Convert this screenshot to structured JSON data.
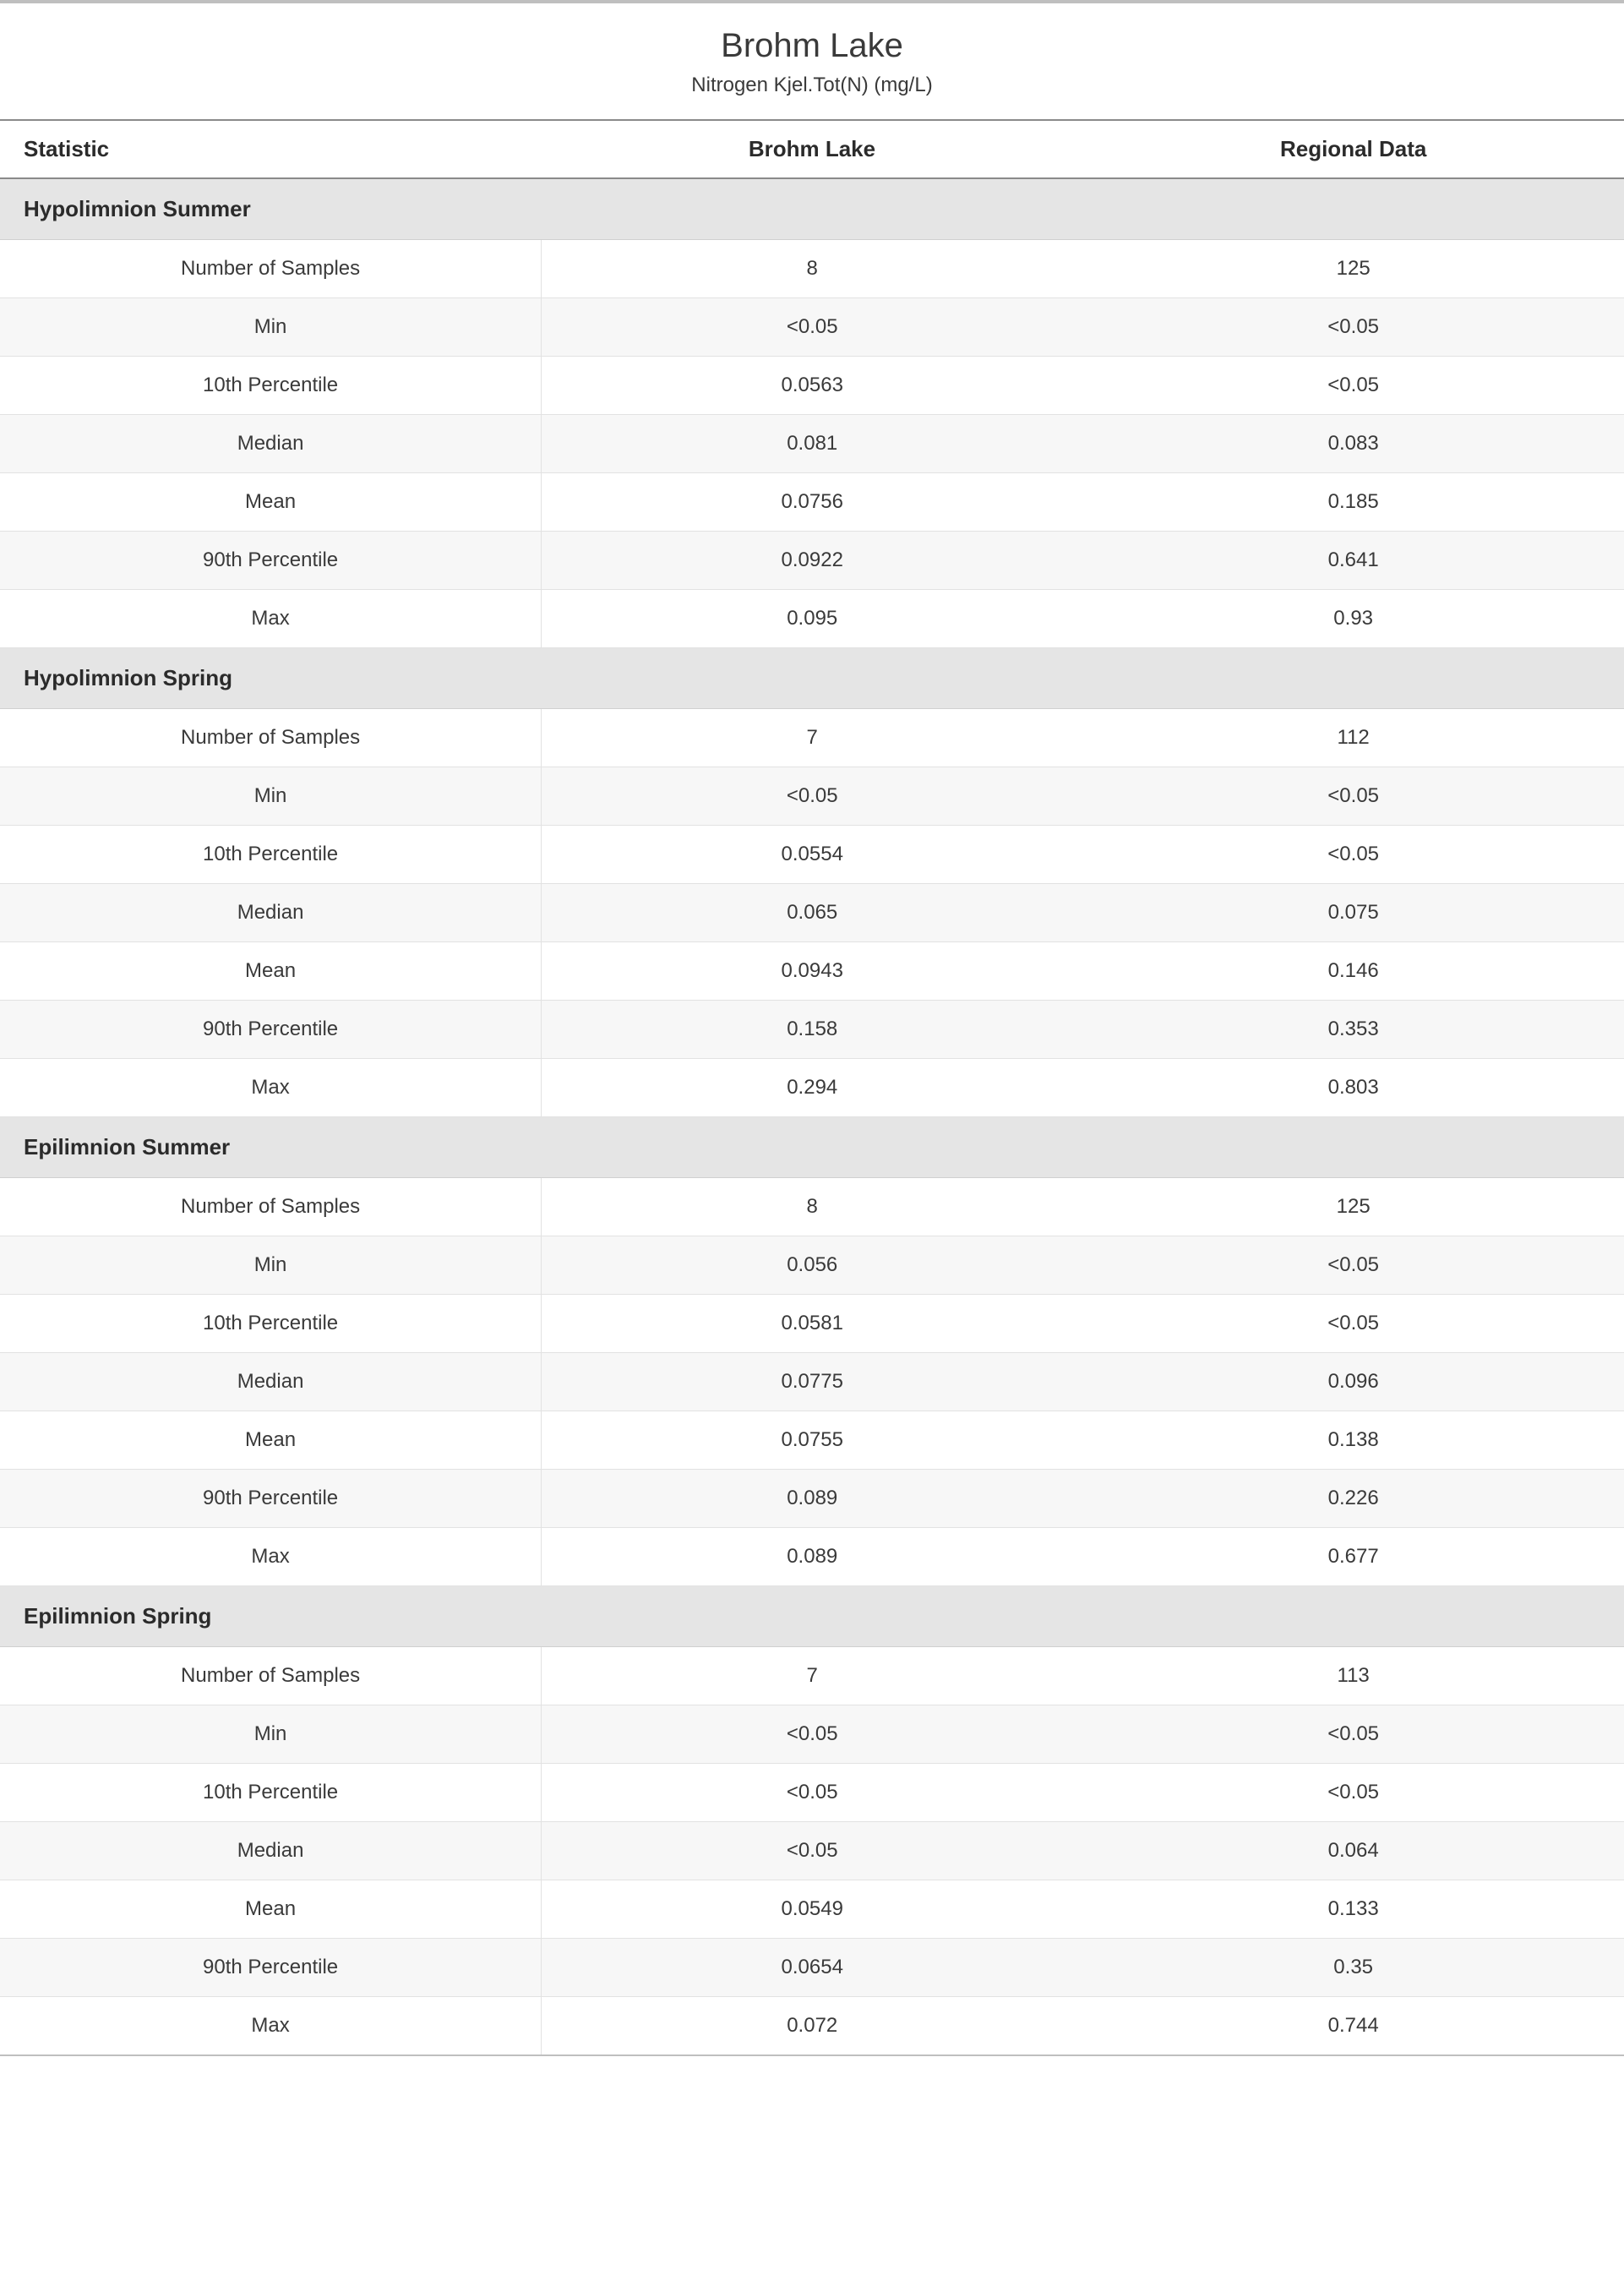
{
  "header": {
    "title": "Brohm Lake",
    "subtitle": "Nitrogen Kjel.Tot(N) (mg/L)"
  },
  "table": {
    "columns": [
      "Statistic",
      "Brohm Lake",
      "Regional Data"
    ],
    "sections": [
      {
        "name": "Hypolimnion Summer",
        "rows": [
          {
            "stat": "Number of Samples",
            "lake": "8",
            "regional": "125"
          },
          {
            "stat": "Min",
            "lake": "<0.05",
            "regional": "<0.05"
          },
          {
            "stat": "10th Percentile",
            "lake": "0.0563",
            "regional": "<0.05"
          },
          {
            "stat": "Median",
            "lake": "0.081",
            "regional": "0.083"
          },
          {
            "stat": "Mean",
            "lake": "0.0756",
            "regional": "0.185"
          },
          {
            "stat": "90th Percentile",
            "lake": "0.0922",
            "regional": "0.641"
          },
          {
            "stat": "Max",
            "lake": "0.095",
            "regional": "0.93"
          }
        ]
      },
      {
        "name": "Hypolimnion Spring",
        "rows": [
          {
            "stat": "Number of Samples",
            "lake": "7",
            "regional": "112"
          },
          {
            "stat": "Min",
            "lake": "<0.05",
            "regional": "<0.05"
          },
          {
            "stat": "10th Percentile",
            "lake": "0.0554",
            "regional": "<0.05"
          },
          {
            "stat": "Median",
            "lake": "0.065",
            "regional": "0.075"
          },
          {
            "stat": "Mean",
            "lake": "0.0943",
            "regional": "0.146"
          },
          {
            "stat": "90th Percentile",
            "lake": "0.158",
            "regional": "0.353"
          },
          {
            "stat": "Max",
            "lake": "0.294",
            "regional": "0.803"
          }
        ]
      },
      {
        "name": "Epilimnion Summer",
        "rows": [
          {
            "stat": "Number of Samples",
            "lake": "8",
            "regional": "125"
          },
          {
            "stat": "Min",
            "lake": "0.056",
            "regional": "<0.05"
          },
          {
            "stat": "10th Percentile",
            "lake": "0.0581",
            "regional": "<0.05"
          },
          {
            "stat": "Median",
            "lake": "0.0775",
            "regional": "0.096"
          },
          {
            "stat": "Mean",
            "lake": "0.0755",
            "regional": "0.138"
          },
          {
            "stat": "90th Percentile",
            "lake": "0.089",
            "regional": "0.226"
          },
          {
            "stat": "Max",
            "lake": "0.089",
            "regional": "0.677"
          }
        ]
      },
      {
        "name": "Epilimnion Spring",
        "rows": [
          {
            "stat": "Number of Samples",
            "lake": "7",
            "regional": "113"
          },
          {
            "stat": "Min",
            "lake": "<0.05",
            "regional": "<0.05"
          },
          {
            "stat": "10th Percentile",
            "lake": "<0.05",
            "regional": "<0.05"
          },
          {
            "stat": "Median",
            "lake": "<0.05",
            "regional": "0.064"
          },
          {
            "stat": "Mean",
            "lake": "0.0549",
            "regional": "0.133"
          },
          {
            "stat": "90th Percentile",
            "lake": "0.0654",
            "regional": "0.35"
          },
          {
            "stat": "Max",
            "lake": "0.072",
            "regional": "0.744"
          }
        ]
      }
    ]
  },
  "style": {
    "type": "table",
    "background_color": "#ffffff",
    "section_bg": "#e5e5e5",
    "alt_row_bg": "#f7f7f7",
    "border_color": "#e2e2e2",
    "header_rule_color": "#8a8a8a",
    "top_rule_color": "#bfbfbf",
    "text_color": "#3a3a3a",
    "title_fontsize_pt": 30,
    "subtitle_fontsize_pt": 18,
    "header_fontsize_pt": 20,
    "cell_fontsize_pt": 18,
    "col_widths_pct": [
      33.33,
      33.33,
      33.33
    ],
    "col_align": [
      "center",
      "center",
      "center"
    ]
  }
}
